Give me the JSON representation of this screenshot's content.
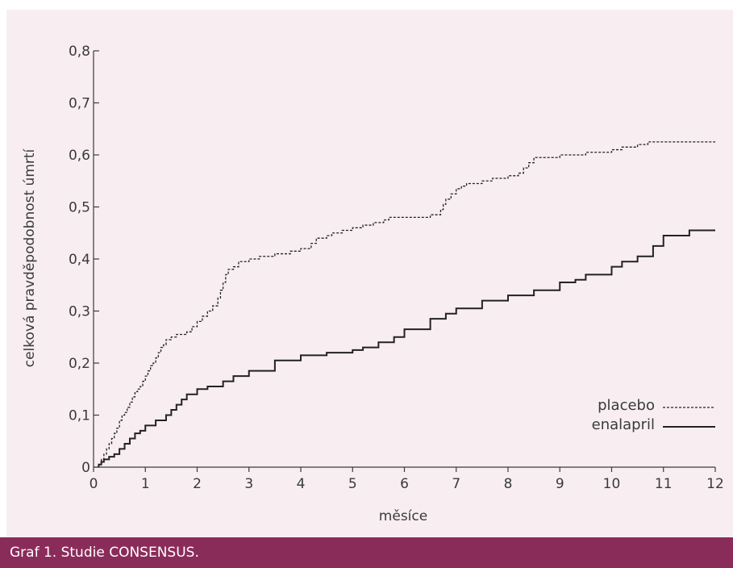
{
  "colors": {
    "panel_bg": "#f8eef1",
    "caption_bg": "#8a2c5a",
    "caption_text": "#ffffff",
    "ink": "#222222"
  },
  "caption": "Graf 1. Studie CONSENSUS.",
  "chart_data": {
    "type": "line",
    "step": true,
    "xlabel": "měsíce",
    "ylabel": "celková pravděpodobnost úmrtí",
    "xlim": [
      0,
      12
    ],
    "ylim": [
      0,
      0.8
    ],
    "x_ticks": [
      0,
      1,
      2,
      3,
      4,
      5,
      6,
      7,
      8,
      9,
      10,
      11,
      12
    ],
    "x_tick_labels": [
      "0",
      "1",
      "2",
      "3",
      "4",
      "5",
      "6",
      "7",
      "8",
      "9",
      "10",
      "11",
      "12"
    ],
    "y_ticks": [
      0,
      0.1,
      0.2,
      0.3,
      0.4,
      0.5,
      0.6,
      0.7,
      0.8
    ],
    "y_tick_labels": [
      "0",
      "0,1",
      "0,2",
      "0,3",
      "0,4",
      "0,5",
      "0,6",
      "0,7",
      "0,8"
    ],
    "grid": false,
    "legend_position": "bottom-right",
    "series": [
      {
        "name": "placebo",
        "style": "dashed",
        "x": [
          0.1,
          0.15,
          0.2,
          0.25,
          0.3,
          0.35,
          0.4,
          0.45,
          0.5,
          0.55,
          0.6,
          0.65,
          0.7,
          0.75,
          0.8,
          0.85,
          0.9,
          0.95,
          1.0,
          1.05,
          1.1,
          1.15,
          1.2,
          1.25,
          1.3,
          1.35,
          1.4,
          1.5,
          1.6,
          1.8,
          1.9,
          2.0,
          2.1,
          2.2,
          2.3,
          2.4,
          2.45,
          2.5,
          2.55,
          2.6,
          2.7,
          2.8,
          3.0,
          3.2,
          3.5,
          3.8,
          4.0,
          4.2,
          4.3,
          4.5,
          4.6,
          4.8,
          5.0,
          5.2,
          5.4,
          5.6,
          5.7,
          5.8,
          6.0,
          6.5,
          6.7,
          6.75,
          6.8,
          6.9,
          7.0,
          7.1,
          7.2,
          7.5,
          7.7,
          8.0,
          8.2,
          8.3,
          8.4,
          8.5,
          9.0,
          9.5,
          10.0,
          10.2,
          10.5,
          10.7,
          11.0,
          11.5,
          12.0
        ],
        "values": [
          0.005,
          0.015,
          0.025,
          0.035,
          0.045,
          0.055,
          0.065,
          0.075,
          0.09,
          0.1,
          0.105,
          0.115,
          0.125,
          0.135,
          0.145,
          0.15,
          0.155,
          0.165,
          0.175,
          0.185,
          0.195,
          0.2,
          0.21,
          0.22,
          0.23,
          0.235,
          0.245,
          0.25,
          0.255,
          0.26,
          0.27,
          0.28,
          0.29,
          0.3,
          0.31,
          0.325,
          0.34,
          0.355,
          0.37,
          0.38,
          0.385,
          0.395,
          0.4,
          0.405,
          0.41,
          0.415,
          0.42,
          0.43,
          0.44,
          0.445,
          0.45,
          0.455,
          0.46,
          0.465,
          0.47,
          0.475,
          0.48,
          0.48,
          0.48,
          0.485,
          0.495,
          0.505,
          0.515,
          0.525,
          0.535,
          0.54,
          0.545,
          0.55,
          0.555,
          0.56,
          0.565,
          0.575,
          0.585,
          0.595,
          0.6,
          0.605,
          0.61,
          0.615,
          0.62,
          0.625,
          0.625,
          0.625,
          0.625
        ]
      },
      {
        "name": "enalapril",
        "style": "solid",
        "x": [
          0.1,
          0.15,
          0.2,
          0.3,
          0.4,
          0.5,
          0.6,
          0.7,
          0.8,
          0.9,
          1.0,
          1.2,
          1.4,
          1.5,
          1.6,
          1.7,
          1.8,
          2.0,
          2.2,
          2.5,
          2.7,
          3.0,
          3.5,
          4.0,
          4.5,
          5.0,
          5.2,
          5.5,
          5.8,
          6.0,
          6.5,
          6.8,
          7.0,
          7.5,
          8.0,
          8.5,
          9.0,
          9.3,
          9.5,
          10.0,
          10.2,
          10.5,
          10.8,
          11.0,
          11.5,
          12.0
        ],
        "values": [
          0.005,
          0.01,
          0.015,
          0.02,
          0.025,
          0.035,
          0.045,
          0.055,
          0.065,
          0.07,
          0.08,
          0.09,
          0.1,
          0.11,
          0.12,
          0.13,
          0.14,
          0.15,
          0.155,
          0.165,
          0.175,
          0.185,
          0.205,
          0.215,
          0.22,
          0.225,
          0.23,
          0.24,
          0.25,
          0.265,
          0.285,
          0.295,
          0.305,
          0.32,
          0.33,
          0.34,
          0.355,
          0.36,
          0.37,
          0.385,
          0.395,
          0.405,
          0.425,
          0.445,
          0.455,
          0.455
        ]
      }
    ]
  }
}
